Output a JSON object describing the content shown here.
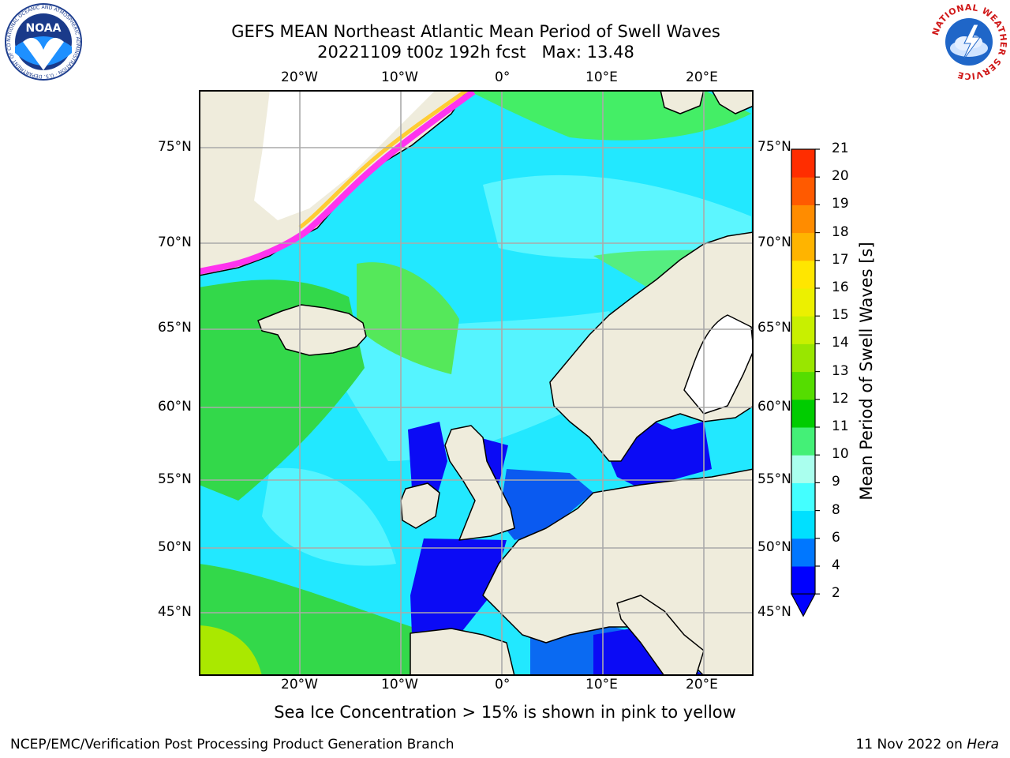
{
  "title": {
    "line1": "GEFS MEAN Northeast Atlantic Mean Period of Swell Waves",
    "date_fcst": "20221109 t00z 192h fcst",
    "max": "Max: 13.48"
  },
  "map": {
    "land_color": "#efecdc",
    "lon_ticks": [
      "20°W",
      "10°W",
      "0°",
      "10°E",
      "20°E"
    ],
    "lat_ticks": [
      "75°N",
      "70°N",
      "65°N",
      "60°N",
      "55°N",
      "50°N",
      "45°N"
    ]
  },
  "colorbar": {
    "label": "Mean Period of Swell Waves [s]",
    "ticks": [
      "2",
      "4",
      "6",
      "8",
      "9",
      "10",
      "11",
      "12",
      "13",
      "14",
      "15",
      "16",
      "17",
      "18",
      "19",
      "20",
      "21"
    ],
    "colors": [
      "#0000ff",
      "#0077ff",
      "#00e0ff",
      "#44ffff",
      "#aaffee",
      "#44f077",
      "#00cc00",
      "#55dd00",
      "#99e600",
      "#c8f000",
      "#ecf000",
      "#ffe600",
      "#ffb400",
      "#ff8c00",
      "#ff5a00",
      "#ff2d00"
    ],
    "extend_color": "#0000ff"
  },
  "note": "Sea Ice Concentration > 15% is shown in pink to yellow",
  "footer": {
    "left": "NCEP/EMC/Verification Post Processing Product Generation Branch",
    "date": "11 Nov 2022 on ",
    "machine": "Hera"
  },
  "logos": {
    "noaa_text": "NOAA",
    "noaa_ring": "NATIONAL OCEANIC AND ATMOSPHERIC ADMINISTRATION · U.S. DEPARTMENT OF COMMERCE",
    "nws_ring": "NATIONAL WEATHER SERVICE"
  }
}
